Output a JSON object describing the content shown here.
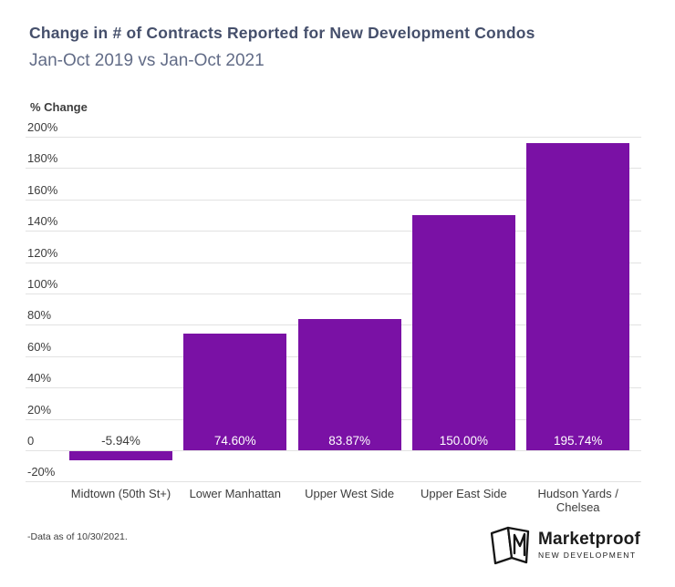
{
  "header": {
    "title": "Change in # of Contracts Reported for New Development Condos",
    "subtitle": "Jan-Oct 2019 vs Jan-Oct 2021"
  },
  "chart_data": {
    "type": "bar",
    "title": "Change in # of Contracts Reported for New Development Condos",
    "subtitle": "Jan-Oct 2019 vs Jan-Oct 2021",
    "ylabel": "% Change",
    "xlabel": "",
    "categories": [
      "Midtown (50th St+)",
      "Lower Manhattan",
      "Upper West Side",
      "Upper East Side",
      "Hudson Yards / Chelsea"
    ],
    "values": [
      -5.94,
      74.6,
      83.87,
      150,
      195.74
    ],
    "value_labels": [
      "-5.94%",
      "74.60%",
      "83.87%",
      "150.00%",
      "195.74%"
    ],
    "yticks": [
      {
        "value": 200,
        "label": "200%"
      },
      {
        "value": 180,
        "label": "180%"
      },
      {
        "value": 160,
        "label": "160%"
      },
      {
        "value": 140,
        "label": "140%"
      },
      {
        "value": 120,
        "label": "120%"
      },
      {
        "value": 100,
        "label": "100%"
      },
      {
        "value": 80,
        "label": "80%"
      },
      {
        "value": 60,
        "label": "60%"
      },
      {
        "value": 40,
        "label": "40%"
      },
      {
        "value": 20,
        "label": "20%"
      },
      {
        "value": 0,
        "label": "0"
      },
      {
        "value": -20,
        "label": "-20%"
      }
    ],
    "ylim": [
      -20,
      200
    ],
    "grid": true,
    "legend": "none",
    "bar_color": "#7A11A5",
    "value_label_color": "#ffffff",
    "negative_value_label_color": "#3d3d3d",
    "grid_color": "#e2e2e2",
    "tick_color": "#3d3d3d"
  },
  "colors": {
    "title": "#454f6b",
    "subtitle": "#626c87",
    "text": "#3d3d3d"
  },
  "footer": {
    "note": "-Data as of 10/30/2021.",
    "logo": {
      "name": "Marketproof",
      "tagline": "NEW DEVELOPMENT",
      "icon": "marketproof-book-icon"
    }
  }
}
